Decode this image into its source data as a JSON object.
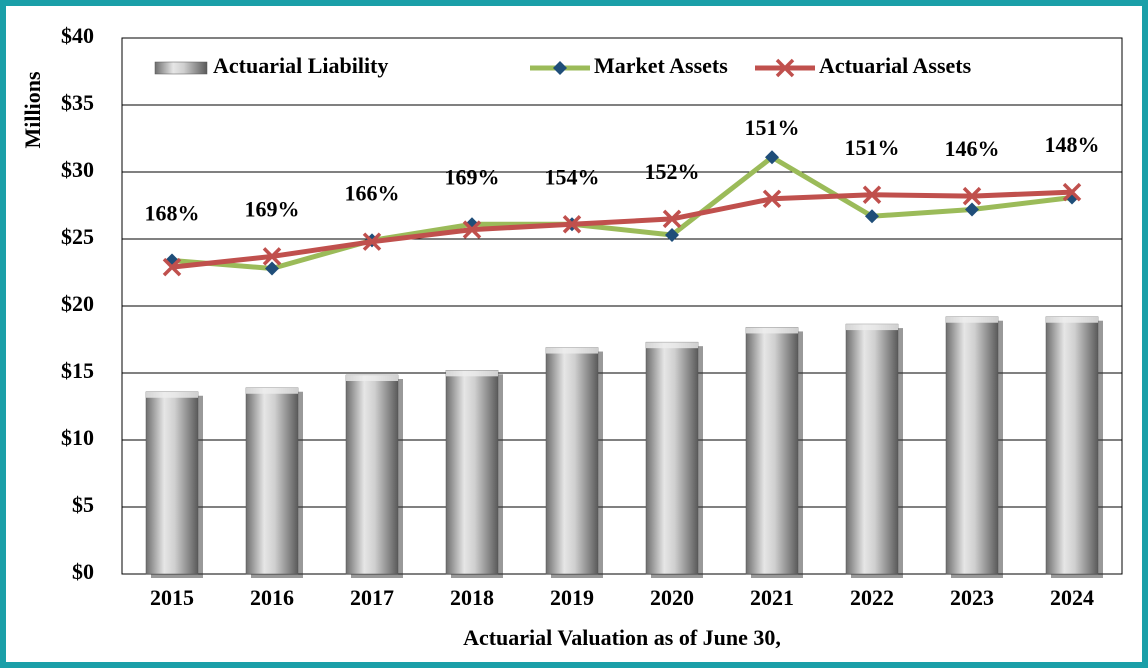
{
  "chart_data": {
    "type": "bar_line",
    "y_axis_label": "Millions",
    "x_axis_label": "Actuarial Valuation as of June 30,",
    "categories": [
      "2015",
      "2016",
      "2017",
      "2018",
      "2019",
      "2020",
      "2021",
      "2022",
      "2023",
      "2024"
    ],
    "series": [
      {
        "name": "Actuarial Liability",
        "type": "bar",
        "color": "#a6a6a6",
        "values": [
          13.6,
          13.9,
          14.85,
          15.2,
          16.9,
          17.3,
          18.4,
          18.65,
          19.2,
          19.2
        ]
      },
      {
        "name": "Market Assets",
        "type": "line",
        "color": "#9bbb59",
        "marker_color": "#1f4e79",
        "marker": "diamond",
        "values": [
          23.4,
          22.8,
          24.9,
          26.1,
          26.1,
          25.3,
          31.1,
          26.7,
          27.2,
          28.1
        ]
      },
      {
        "name": "Actuarial Assets",
        "type": "line",
        "color": "#c0504d",
        "marker_color": "#c0504d",
        "marker": "x",
        "values": [
          22.9,
          23.7,
          24.8,
          25.7,
          26.1,
          26.5,
          28.0,
          28.3,
          28.2,
          28.5
        ]
      }
    ],
    "ratio_labels": {
      "values": [
        168,
        169,
        166,
        169,
        154,
        152,
        151,
        151,
        146,
        148
      ],
      "value_labels": [
        "168%",
        "169%",
        "166%",
        "169%",
        "154%",
        "152%",
        "151%",
        "151%",
        "146%",
        "148%"
      ]
    },
    "ylim": [
      0,
      40
    ],
    "yticks": [
      {
        "value": 0,
        "label": "$0"
      },
      {
        "value": 5,
        "label": "$5"
      },
      {
        "value": 10,
        "label": "$10"
      },
      {
        "value": 15,
        "label": "$15"
      },
      {
        "value": 20,
        "label": "$20"
      },
      {
        "value": 25,
        "label": "$25"
      },
      {
        "value": 30,
        "label": "$30"
      },
      {
        "value": 35,
        "label": "$35"
      },
      {
        "value": 40,
        "label": "$40"
      }
    ],
    "grid": true,
    "legend": "top"
  }
}
